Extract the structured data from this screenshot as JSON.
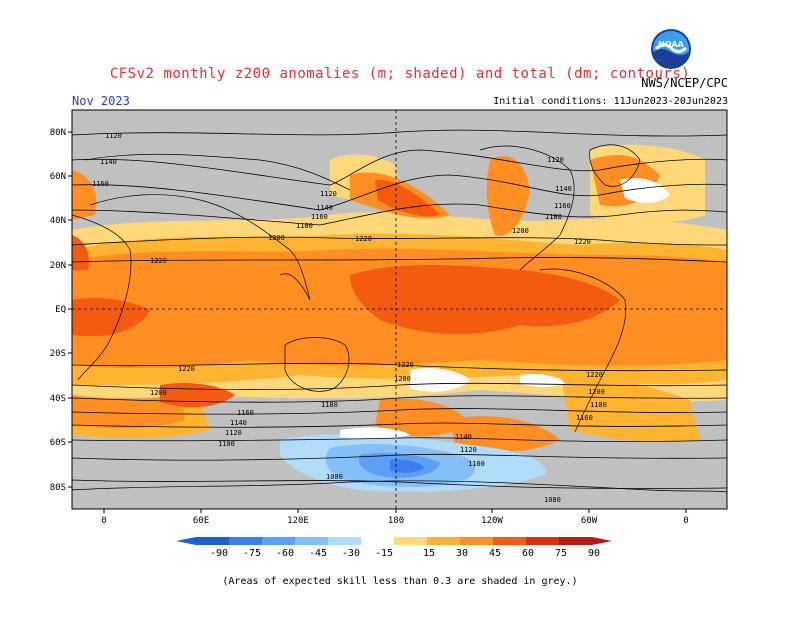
{
  "header": {
    "title": "CFSv2 monthly z200 anomalies (m; shaded) and total (dm; contours)",
    "month": "Nov 2023",
    "initial_conditions": "Initial conditions: 11Jun2023-20Jun2023",
    "agency": "NWS/NCEP/CPC",
    "logo_text": "NOAA"
  },
  "map": {
    "lat_labels": [
      "80N",
      "60N",
      "40N",
      "20N",
      "EQ",
      "20S",
      "40S",
      "60S",
      "80S"
    ],
    "lon_labels": [
      "0",
      "60E",
      "120E",
      "180",
      "120W",
      "60W",
      "0"
    ],
    "contour_labels": [
      {
        "text": "1120"
      },
      {
        "text": "1140"
      },
      {
        "text": "1160"
      },
      {
        "text": "1120"
      },
      {
        "text": "1140"
      },
      {
        "text": "1160"
      },
      {
        "text": "1180"
      },
      {
        "text": "1200"
      },
      {
        "text": "1220"
      },
      {
        "text": "1220"
      },
      {
        "text": "1120"
      },
      {
        "text": "1140"
      },
      {
        "text": "1160"
      },
      {
        "text": "1180"
      },
      {
        "text": "1200"
      },
      {
        "text": "1220"
      },
      {
        "text": "1220"
      },
      {
        "text": "1220"
      },
      {
        "text": "1200"
      },
      {
        "text": "1220"
      },
      {
        "text": "1200"
      },
      {
        "text": "1200"
      },
      {
        "text": "1180"
      },
      {
        "text": "1160"
      },
      {
        "text": "1140"
      },
      {
        "text": "1120"
      },
      {
        "text": "1100"
      },
      {
        "text": "1160"
      },
      {
        "text": "1180"
      },
      {
        "text": "1140"
      },
      {
        "text": "1120"
      },
      {
        "text": "1100"
      },
      {
        "text": "1080"
      },
      {
        "text": "1080"
      }
    ]
  },
  "colorbar": {
    "labels": [
      "-90",
      "-75",
      "-60",
      "-45",
      "-30",
      "-15",
      "15",
      "30",
      "45",
      "60",
      "75",
      "90"
    ],
    "colors": [
      "#1f5fd0",
      "#3a7ff0",
      "#5c9ff5",
      "#86bff8",
      "#b0dcfa",
      "#ffffff",
      "#ffd87a",
      "#ffb431",
      "#ff8f22",
      "#f45a10",
      "#dd3010",
      "#b81818"
    ]
  },
  "footnote": "(Areas of expected skill less than 0.3 are shaded in grey.)"
}
